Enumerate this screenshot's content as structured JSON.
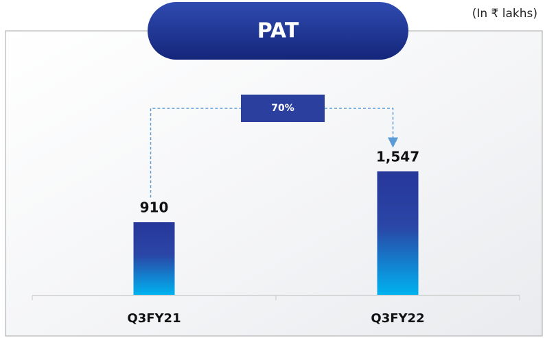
{
  "chart_data": {
    "type": "bar",
    "title": "PAT",
    "subtitle": "(In ₹ lakhs)",
    "categories": [
      "Q3FY21",
      "Q3FY22"
    ],
    "values": [
      910,
      1547
    ],
    "value_labels": [
      "910",
      "1,547"
    ],
    "annotation": "70%",
    "color": "#2a3f9f"
  }
}
